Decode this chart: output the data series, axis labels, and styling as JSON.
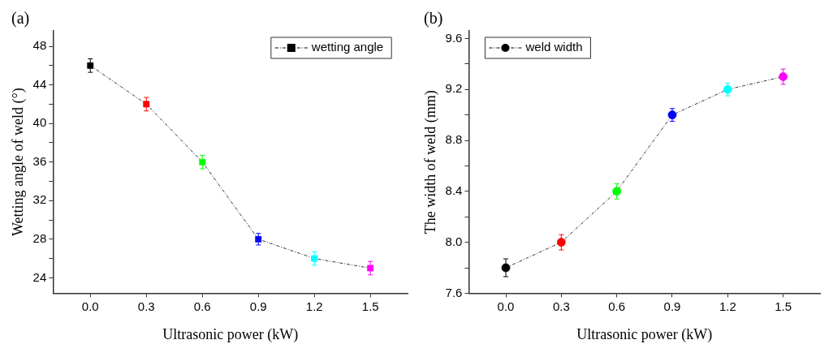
{
  "chart_data": [
    {
      "type": "line",
      "annotations": [
        "(a)"
      ],
      "xlabel": "Ultrasonic power (kW)",
      "ylabel": "Wetting angle of weld (°)",
      "x": [
        0,
        0.3,
        0.6,
        0.9,
        1.2,
        1.5
      ],
      "series": [
        {
          "name": "wetting angle",
          "color": "#000000",
          "colors": [
            "#000000",
            "#ff0000",
            "#00ff00",
            "#0000ff",
            "#00ffff",
            "#ff00ff"
          ],
          "values": [
            46,
            42,
            36,
            28,
            26,
            25
          ],
          "errors": [
            0.7,
            0.7,
            0.7,
            0.6,
            0.7,
            0.7
          ]
        }
      ],
      "xlim": [
        -0.2,
        1.7
      ],
      "xticks": [
        {
          "value": 0,
          "label": "0.0"
        },
        {
          "value": 0.3,
          "label": "0.3"
        },
        {
          "value": 0.6,
          "label": "0.6"
        },
        {
          "value": 0.9,
          "label": "0.9"
        },
        {
          "value": 1.2,
          "label": "1.2"
        },
        {
          "value": 1.5,
          "label": "1.5"
        }
      ],
      "ylim": [
        22.4,
        49.6
      ],
      "yticks": [
        24,
        {
          "value": 26,
          "label": null
        },
        28,
        {
          "value": 30,
          "label": null
        },
        32,
        {
          "value": 34,
          "label": null
        },
        36,
        {
          "value": 38,
          "label": null
        },
        40,
        {
          "value": 42,
          "label": null
        },
        44,
        {
          "value": 46,
          "label": null
        },
        48
      ],
      "marker": "square",
      "line_style": "dashed",
      "legend": "top right",
      "grid": false
    },
    {
      "type": "line",
      "annotations": [
        "(b)"
      ],
      "xlabel": "Ultrasonic power (kW)",
      "ylabel": "The width of weld (mm)",
      "x": [
        0,
        0.3,
        0.6,
        0.9,
        1.2,
        1.5
      ],
      "series": [
        {
          "name": "weld width",
          "color": "#000000",
          "colors": [
            "#000000",
            "#ff0000",
            "#00ff00",
            "#0000ff",
            "#00ffff",
            "#ff00ff"
          ],
          "values": [
            7.8,
            8.0,
            8.4,
            9.0,
            9.2,
            9.3
          ],
          "errors": [
            0.07,
            0.06,
            0.06,
            0.05,
            0.05,
            0.06
          ]
        }
      ],
      "xlim": [
        -0.2,
        1.7
      ],
      "xticks": [
        {
          "value": 0,
          "label": "0.0"
        },
        {
          "value": 0.3,
          "label": "0.3"
        },
        {
          "value": 0.6,
          "label": "0.6"
        },
        {
          "value": 0.9,
          "label": "0.9"
        },
        {
          "value": 1.2,
          "label": "1.2"
        },
        {
          "value": 1.5,
          "label": "1.5"
        }
      ],
      "ylim": [
        7.6,
        9.66
      ],
      "yticks": [
        {
          "value": 7.6,
          "label": "7.6"
        },
        {
          "value": 7.8,
          "label": null
        },
        {
          "value": 8.0,
          "label": "8.0"
        },
        {
          "value": 8.2,
          "label": null
        },
        {
          "value": 8.4,
          "label": "8.4"
        },
        {
          "value": 8.6,
          "label": null
        },
        {
          "value": 8.8,
          "label": "8.8"
        },
        {
          "value": 9.0,
          "label": null
        },
        {
          "value": 9.2,
          "label": "9.2"
        },
        {
          "value": 9.4,
          "label": null
        },
        {
          "value": 9.6,
          "label": "9.6"
        }
      ],
      "marker": "circle",
      "line_style": "dashed",
      "legend": "top left",
      "grid": false
    }
  ]
}
